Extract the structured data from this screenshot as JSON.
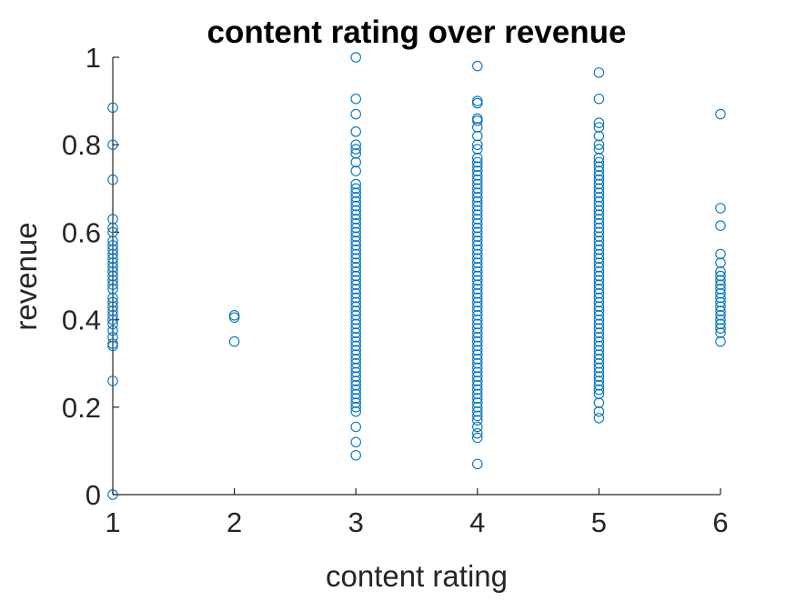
{
  "chart_data": {
    "type": "scatter",
    "title": "content rating over revenue",
    "xlabel": "content rating",
    "ylabel": "revenue",
    "xlim": [
      1,
      6
    ],
    "ylim": [
      0,
      1
    ],
    "xticks": [
      "1",
      "2",
      "3",
      "4",
      "5",
      "6"
    ],
    "yticks": [
      "0",
      "0.2",
      "0.4",
      "0.6",
      "0.8",
      "1"
    ],
    "grid": false,
    "marker": "open-circle",
    "color": "#0072BD",
    "series": [
      {
        "points": [
          [
            1,
            0.0
          ],
          [
            1,
            0.26
          ],
          [
            1,
            0.34
          ],
          [
            1,
            0.345
          ],
          [
            1,
            0.36
          ],
          [
            1,
            0.375
          ],
          [
            1,
            0.39
          ],
          [
            1,
            0.4
          ],
          [
            1,
            0.41
          ],
          [
            1,
            0.42
          ],
          [
            1,
            0.43
          ],
          [
            1,
            0.44
          ],
          [
            1,
            0.45
          ],
          [
            1,
            0.47
          ],
          [
            1,
            0.48
          ],
          [
            1,
            0.49
          ],
          [
            1,
            0.5
          ],
          [
            1,
            0.51
          ],
          [
            1,
            0.52
          ],
          [
            1,
            0.53
          ],
          [
            1,
            0.54
          ],
          [
            1,
            0.55
          ],
          [
            1,
            0.56
          ],
          [
            1,
            0.57
          ],
          [
            1,
            0.58
          ],
          [
            1,
            0.6
          ],
          [
            1,
            0.61
          ],
          [
            1,
            0.63
          ],
          [
            1,
            0.72
          ],
          [
            1,
            0.8
          ],
          [
            1,
            0.885
          ],
          [
            2,
            0.35
          ],
          [
            2,
            0.405
          ],
          [
            2,
            0.41
          ],
          [
            3,
            0.09
          ],
          [
            3,
            0.12
          ],
          [
            3,
            0.155
          ],
          [
            3,
            0.19
          ],
          [
            3,
            0.2
          ],
          [
            3,
            0.21
          ],
          [
            3,
            0.22
          ],
          [
            3,
            0.23
          ],
          [
            3,
            0.24
          ],
          [
            3,
            0.25
          ],
          [
            3,
            0.26
          ],
          [
            3,
            0.27
          ],
          [
            3,
            0.28
          ],
          [
            3,
            0.29
          ],
          [
            3,
            0.3
          ],
          [
            3,
            0.31
          ],
          [
            3,
            0.32
          ],
          [
            3,
            0.33
          ],
          [
            3,
            0.34
          ],
          [
            3,
            0.35
          ],
          [
            3,
            0.36
          ],
          [
            3,
            0.37
          ],
          [
            3,
            0.38
          ],
          [
            3,
            0.39
          ],
          [
            3,
            0.4
          ],
          [
            3,
            0.41
          ],
          [
            3,
            0.42
          ],
          [
            3,
            0.43
          ],
          [
            3,
            0.44
          ],
          [
            3,
            0.45
          ],
          [
            3,
            0.46
          ],
          [
            3,
            0.47
          ],
          [
            3,
            0.48
          ],
          [
            3,
            0.49
          ],
          [
            3,
            0.5
          ],
          [
            3,
            0.51
          ],
          [
            3,
            0.52
          ],
          [
            3,
            0.53
          ],
          [
            3,
            0.54
          ],
          [
            3,
            0.55
          ],
          [
            3,
            0.56
          ],
          [
            3,
            0.57
          ],
          [
            3,
            0.58
          ],
          [
            3,
            0.59
          ],
          [
            3,
            0.6
          ],
          [
            3,
            0.61
          ],
          [
            3,
            0.62
          ],
          [
            3,
            0.63
          ],
          [
            3,
            0.64
          ],
          [
            3,
            0.65
          ],
          [
            3,
            0.66
          ],
          [
            3,
            0.67
          ],
          [
            3,
            0.68
          ],
          [
            3,
            0.69
          ],
          [
            3,
            0.7
          ],
          [
            3,
            0.71
          ],
          [
            3,
            0.74
          ],
          [
            3,
            0.76
          ],
          [
            3,
            0.78
          ],
          [
            3,
            0.79
          ],
          [
            3,
            0.8
          ],
          [
            3,
            0.83
          ],
          [
            3,
            0.87
          ],
          [
            3,
            0.905
          ],
          [
            3,
            1.0
          ],
          [
            4,
            0.07
          ],
          [
            4,
            0.13
          ],
          [
            4,
            0.14
          ],
          [
            4,
            0.155
          ],
          [
            4,
            0.17
          ],
          [
            4,
            0.18
          ],
          [
            4,
            0.19
          ],
          [
            4,
            0.2
          ],
          [
            4,
            0.21
          ],
          [
            4,
            0.22
          ],
          [
            4,
            0.23
          ],
          [
            4,
            0.24
          ],
          [
            4,
            0.25
          ],
          [
            4,
            0.26
          ],
          [
            4,
            0.27
          ],
          [
            4,
            0.28
          ],
          [
            4,
            0.29
          ],
          [
            4,
            0.3
          ],
          [
            4,
            0.31
          ],
          [
            4,
            0.32
          ],
          [
            4,
            0.33
          ],
          [
            4,
            0.34
          ],
          [
            4,
            0.35
          ],
          [
            4,
            0.36
          ],
          [
            4,
            0.37
          ],
          [
            4,
            0.38
          ],
          [
            4,
            0.39
          ],
          [
            4,
            0.4
          ],
          [
            4,
            0.41
          ],
          [
            4,
            0.42
          ],
          [
            4,
            0.43
          ],
          [
            4,
            0.44
          ],
          [
            4,
            0.45
          ],
          [
            4,
            0.46
          ],
          [
            4,
            0.47
          ],
          [
            4,
            0.48
          ],
          [
            4,
            0.49
          ],
          [
            4,
            0.5
          ],
          [
            4,
            0.51
          ],
          [
            4,
            0.52
          ],
          [
            4,
            0.53
          ],
          [
            4,
            0.54
          ],
          [
            4,
            0.55
          ],
          [
            4,
            0.56
          ],
          [
            4,
            0.57
          ],
          [
            4,
            0.58
          ],
          [
            4,
            0.59
          ],
          [
            4,
            0.6
          ],
          [
            4,
            0.61
          ],
          [
            4,
            0.62
          ],
          [
            4,
            0.63
          ],
          [
            4,
            0.64
          ],
          [
            4,
            0.65
          ],
          [
            4,
            0.66
          ],
          [
            4,
            0.67
          ],
          [
            4,
            0.68
          ],
          [
            4,
            0.69
          ],
          [
            4,
            0.7
          ],
          [
            4,
            0.71
          ],
          [
            4,
            0.72
          ],
          [
            4,
            0.73
          ],
          [
            4,
            0.74
          ],
          [
            4,
            0.75
          ],
          [
            4,
            0.76
          ],
          [
            4,
            0.77
          ],
          [
            4,
            0.79
          ],
          [
            4,
            0.8
          ],
          [
            4,
            0.82
          ],
          [
            4,
            0.84
          ],
          [
            4,
            0.855
          ],
          [
            4,
            0.86
          ],
          [
            4,
            0.895
          ],
          [
            4,
            0.9
          ],
          [
            4,
            0.98
          ],
          [
            5,
            0.175
          ],
          [
            5,
            0.19
          ],
          [
            5,
            0.21
          ],
          [
            5,
            0.23
          ],
          [
            5,
            0.24
          ],
          [
            5,
            0.25
          ],
          [
            5,
            0.26
          ],
          [
            5,
            0.27
          ],
          [
            5,
            0.28
          ],
          [
            5,
            0.29
          ],
          [
            5,
            0.3
          ],
          [
            5,
            0.31
          ],
          [
            5,
            0.32
          ],
          [
            5,
            0.33
          ],
          [
            5,
            0.34
          ],
          [
            5,
            0.35
          ],
          [
            5,
            0.36
          ],
          [
            5,
            0.37
          ],
          [
            5,
            0.38
          ],
          [
            5,
            0.39
          ],
          [
            5,
            0.4
          ],
          [
            5,
            0.41
          ],
          [
            5,
            0.42
          ],
          [
            5,
            0.43
          ],
          [
            5,
            0.44
          ],
          [
            5,
            0.45
          ],
          [
            5,
            0.46
          ],
          [
            5,
            0.47
          ],
          [
            5,
            0.48
          ],
          [
            5,
            0.49
          ],
          [
            5,
            0.5
          ],
          [
            5,
            0.51
          ],
          [
            5,
            0.52
          ],
          [
            5,
            0.53
          ],
          [
            5,
            0.54
          ],
          [
            5,
            0.55
          ],
          [
            5,
            0.56
          ],
          [
            5,
            0.57
          ],
          [
            5,
            0.58
          ],
          [
            5,
            0.59
          ],
          [
            5,
            0.6
          ],
          [
            5,
            0.61
          ],
          [
            5,
            0.62
          ],
          [
            5,
            0.63
          ],
          [
            5,
            0.64
          ],
          [
            5,
            0.65
          ],
          [
            5,
            0.66
          ],
          [
            5,
            0.67
          ],
          [
            5,
            0.68
          ],
          [
            5,
            0.69
          ],
          [
            5,
            0.7
          ],
          [
            5,
            0.71
          ],
          [
            5,
            0.72
          ],
          [
            5,
            0.73
          ],
          [
            5,
            0.74
          ],
          [
            5,
            0.75
          ],
          [
            5,
            0.76
          ],
          [
            5,
            0.77
          ],
          [
            5,
            0.79
          ],
          [
            5,
            0.8
          ],
          [
            5,
            0.82
          ],
          [
            5,
            0.84
          ],
          [
            5,
            0.85
          ],
          [
            5,
            0.905
          ],
          [
            5,
            0.965
          ],
          [
            6,
            0.35
          ],
          [
            6,
            0.37
          ],
          [
            6,
            0.38
          ],
          [
            6,
            0.39
          ],
          [
            6,
            0.4
          ],
          [
            6,
            0.41
          ],
          [
            6,
            0.42
          ],
          [
            6,
            0.43
          ],
          [
            6,
            0.44
          ],
          [
            6,
            0.45
          ],
          [
            6,
            0.46
          ],
          [
            6,
            0.47
          ],
          [
            6,
            0.48
          ],
          [
            6,
            0.49
          ],
          [
            6,
            0.5
          ],
          [
            6,
            0.51
          ],
          [
            6,
            0.53
          ],
          [
            6,
            0.55
          ],
          [
            6,
            0.615
          ],
          [
            6,
            0.655
          ],
          [
            6,
            0.87
          ]
        ]
      }
    ]
  }
}
